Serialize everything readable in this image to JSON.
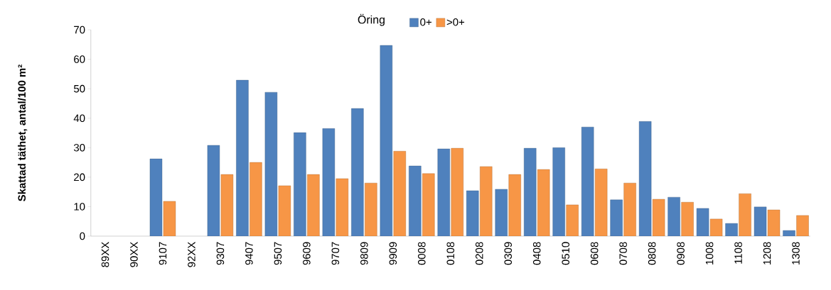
{
  "chart_data": {
    "type": "bar",
    "title": "Öring",
    "ylabel": "Skattad täthet, antal/100 m²",
    "categories": [
      "89XX",
      "90XX",
      "9107",
      "92XX",
      "9307",
      "9407",
      "9507",
      "9609",
      "9707",
      "9809",
      "9909",
      "0008",
      "0108",
      "0208",
      "0309",
      "0408",
      "0510",
      "0608",
      "0708",
      "0808",
      "0908",
      "1008",
      "1108",
      "1208",
      "1308"
    ],
    "series": [
      {
        "name": "0+",
        "color": "#4f81bd",
        "values": [
          null,
          null,
          26.2,
          null,
          30.8,
          52.9,
          48.8,
          35.1,
          36.5,
          43.3,
          64.7,
          23.8,
          29.6,
          15.4,
          15.9,
          29.8,
          30.0,
          37.0,
          12.3,
          38.9,
          13.2,
          9.4,
          4.3,
          9.9,
          1.9
        ]
      },
      {
        "name": ">0+",
        "color": "#f79646",
        "values": [
          null,
          null,
          11.8,
          null,
          20.9,
          25.0,
          17.1,
          20.9,
          19.5,
          18.0,
          28.8,
          21.2,
          29.8,
          23.6,
          20.9,
          22.6,
          10.6,
          22.8,
          18.0,
          12.5,
          11.5,
          5.8,
          14.4,
          8.9,
          7.0
        ]
      }
    ],
    "ylim": [
      0,
      70
    ],
    "yticks": [
      0,
      10,
      20,
      30,
      40,
      50,
      60,
      70
    ],
    "grid": false,
    "legend": "top"
  }
}
